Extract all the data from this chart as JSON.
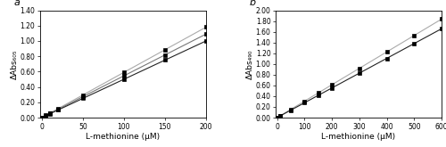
{
  "panel_a": {
    "label": "a",
    "xlabel": "L-methionine (μM)",
    "ylabel": "ΔAbs₆₀₅",
    "xlim": [
      -2,
      200
    ],
    "ylim": [
      0,
      1.4
    ],
    "xticks": [
      0,
      50,
      100,
      150,
      200
    ],
    "yticks": [
      0.0,
      0.2,
      0.4,
      0.6,
      0.8,
      1.0,
      1.2,
      1.4
    ],
    "x_data": [
      0,
      5,
      10,
      20,
      50,
      100,
      150,
      200
    ],
    "lines": [
      {
        "slope": 0.0059,
        "intercept": 0.0,
        "color": "#aaaaaa"
      },
      {
        "slope": 0.00545,
        "intercept": 0.0,
        "color": "#777777"
      },
      {
        "slope": 0.005,
        "intercept": 0.0,
        "color": "#222222"
      }
    ],
    "marker_line_indices": [
      0,
      1,
      2
    ],
    "marker": "s",
    "marker_size": 2.5
  },
  "panel_b": {
    "label": "b",
    "xlabel": "L-methionine (μM)",
    "ylabel": "ΔAbs₄₉₀",
    "xlim": [
      -5,
      600
    ],
    "ylim": [
      0,
      2.0
    ],
    "xticks": [
      0,
      100,
      200,
      300,
      400,
      500,
      600
    ],
    "yticks": [
      0.0,
      0.2,
      0.4,
      0.6,
      0.8,
      1.0,
      1.2,
      1.4,
      1.6,
      1.8,
      2.0
    ],
    "x_data": [
      0,
      10,
      50,
      100,
      150,
      200,
      300,
      400,
      500,
      600
    ],
    "lines": [
      {
        "slope": 0.00306,
        "intercept": 0.0,
        "color": "#aaaaaa"
      },
      {
        "slope": 0.00276,
        "intercept": 0.0,
        "color": "#222222"
      }
    ],
    "marker_line_indices": [
      0,
      1
    ],
    "marker": "s",
    "marker_size": 2.5
  },
  "tick_fontsize": 5.5,
  "label_fontsize": 6.5,
  "linewidth": 0.8,
  "panel_label_fontsize": 8
}
